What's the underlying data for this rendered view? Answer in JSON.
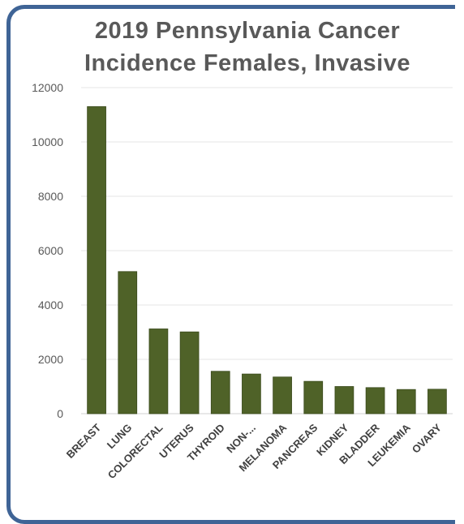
{
  "chart_data": {
    "type": "bar",
    "title_line1": "2019 Pennsylvania Cancer",
    "title_line2": "Incidence Females, Invasive",
    "categories": [
      "BREAST",
      "LUNG",
      "COLORECTAL",
      "UTERUS",
      "THYROID",
      "NON-...",
      "MELANOMA",
      "PANCREAS",
      "KIDNEY",
      "BLADDER",
      "LEUKEMIA",
      "OVARY"
    ],
    "values": [
      11300,
      5230,
      3120,
      3010,
      1560,
      1460,
      1350,
      1190,
      1000,
      960,
      890,
      900
    ],
    "ylim": [
      0,
      12000
    ],
    "yticks": [
      0,
      2000,
      4000,
      6000,
      8000,
      10000,
      12000
    ],
    "grid": true,
    "legend": "none",
    "bar_color": "#4f6228",
    "frame_color": "#3f6496"
  }
}
